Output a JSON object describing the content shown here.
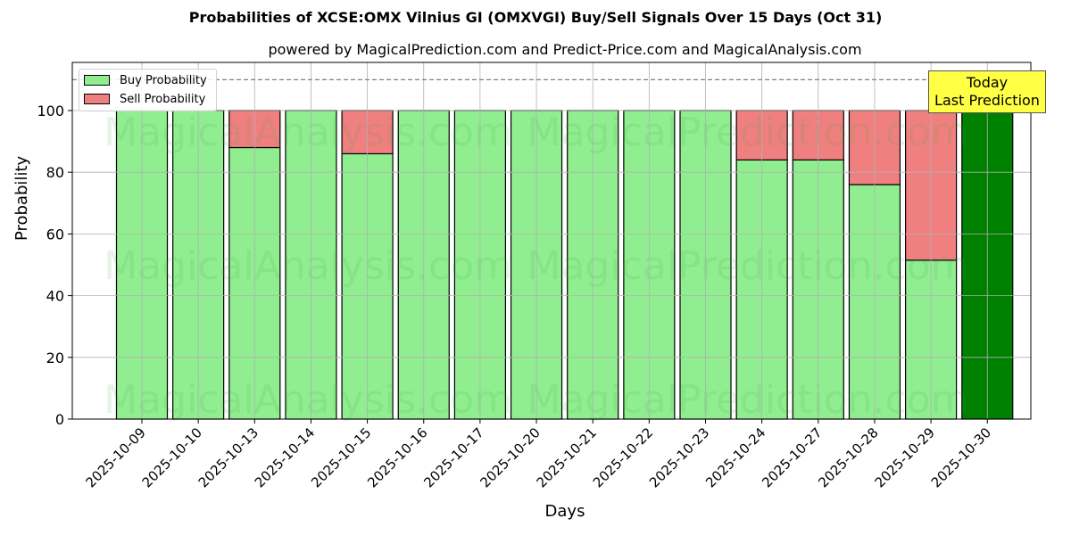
{
  "title": "Probabilities of XCSE:OMX Vilnius GI (OMXVGI) Buy/Sell Signals Over 15 Days (Oct 31)",
  "subtitle": "powered by MagicalPrediction.com and Predict-Price.com and MagicalAnalysis.com",
  "watermarks": [
    "MagicalAnalysis.com",
    "MagicalPrediction.com"
  ],
  "annotation": {
    "line1": "Today",
    "line2": "Last Prediction"
  },
  "legend": {
    "buy": "Buy Probability",
    "sell": "Sell Probability"
  },
  "colors": {
    "buy": "#90ee90",
    "sell": "#f08080",
    "today": "#008000",
    "annotation_bg": "#ffff44"
  },
  "chart_data": {
    "type": "bar",
    "stacked": true,
    "title": "Probabilities of XCSE:OMX Vilnius GI (OMXVGI) Buy/Sell Signals Over 15 Days (Oct 31)",
    "subtitle": "powered by MagicalPrediction.com and Predict-Price.com and MagicalAnalysis.com",
    "xlabel": "Days",
    "ylabel": "Probability",
    "ylim": [
      0,
      115.6
    ],
    "yticks": [
      0,
      20,
      40,
      60,
      80,
      100
    ],
    "grid": true,
    "legend_position": "upper left",
    "reference_line": {
      "y": 110,
      "style": "dashed",
      "color": "#808080"
    },
    "categories": [
      "2025-10-09",
      "2025-10-10",
      "2025-10-13",
      "2025-10-14",
      "2025-10-15",
      "2025-10-16",
      "2025-10-17",
      "2025-10-20",
      "2025-10-21",
      "2025-10-22",
      "2025-10-23",
      "2025-10-24",
      "2025-10-27",
      "2025-10-28",
      "2025-10-29",
      "2025-10-30"
    ],
    "series": [
      {
        "name": "Buy Probability",
        "color": "#90ee90",
        "values": [
          100,
          100,
          88,
          100,
          86,
          100,
          100,
          100,
          100,
          100,
          100,
          84,
          84,
          76,
          51.5,
          100
        ]
      },
      {
        "name": "Sell Probability",
        "color": "#f08080",
        "values": [
          0,
          0,
          12,
          0,
          14,
          0,
          0,
          0,
          0,
          0,
          0,
          16,
          16,
          24,
          48.5,
          0
        ]
      }
    ],
    "highlight": {
      "category": "2025-10-30",
      "color": "#008000",
      "label": "Today Last Prediction"
    }
  }
}
